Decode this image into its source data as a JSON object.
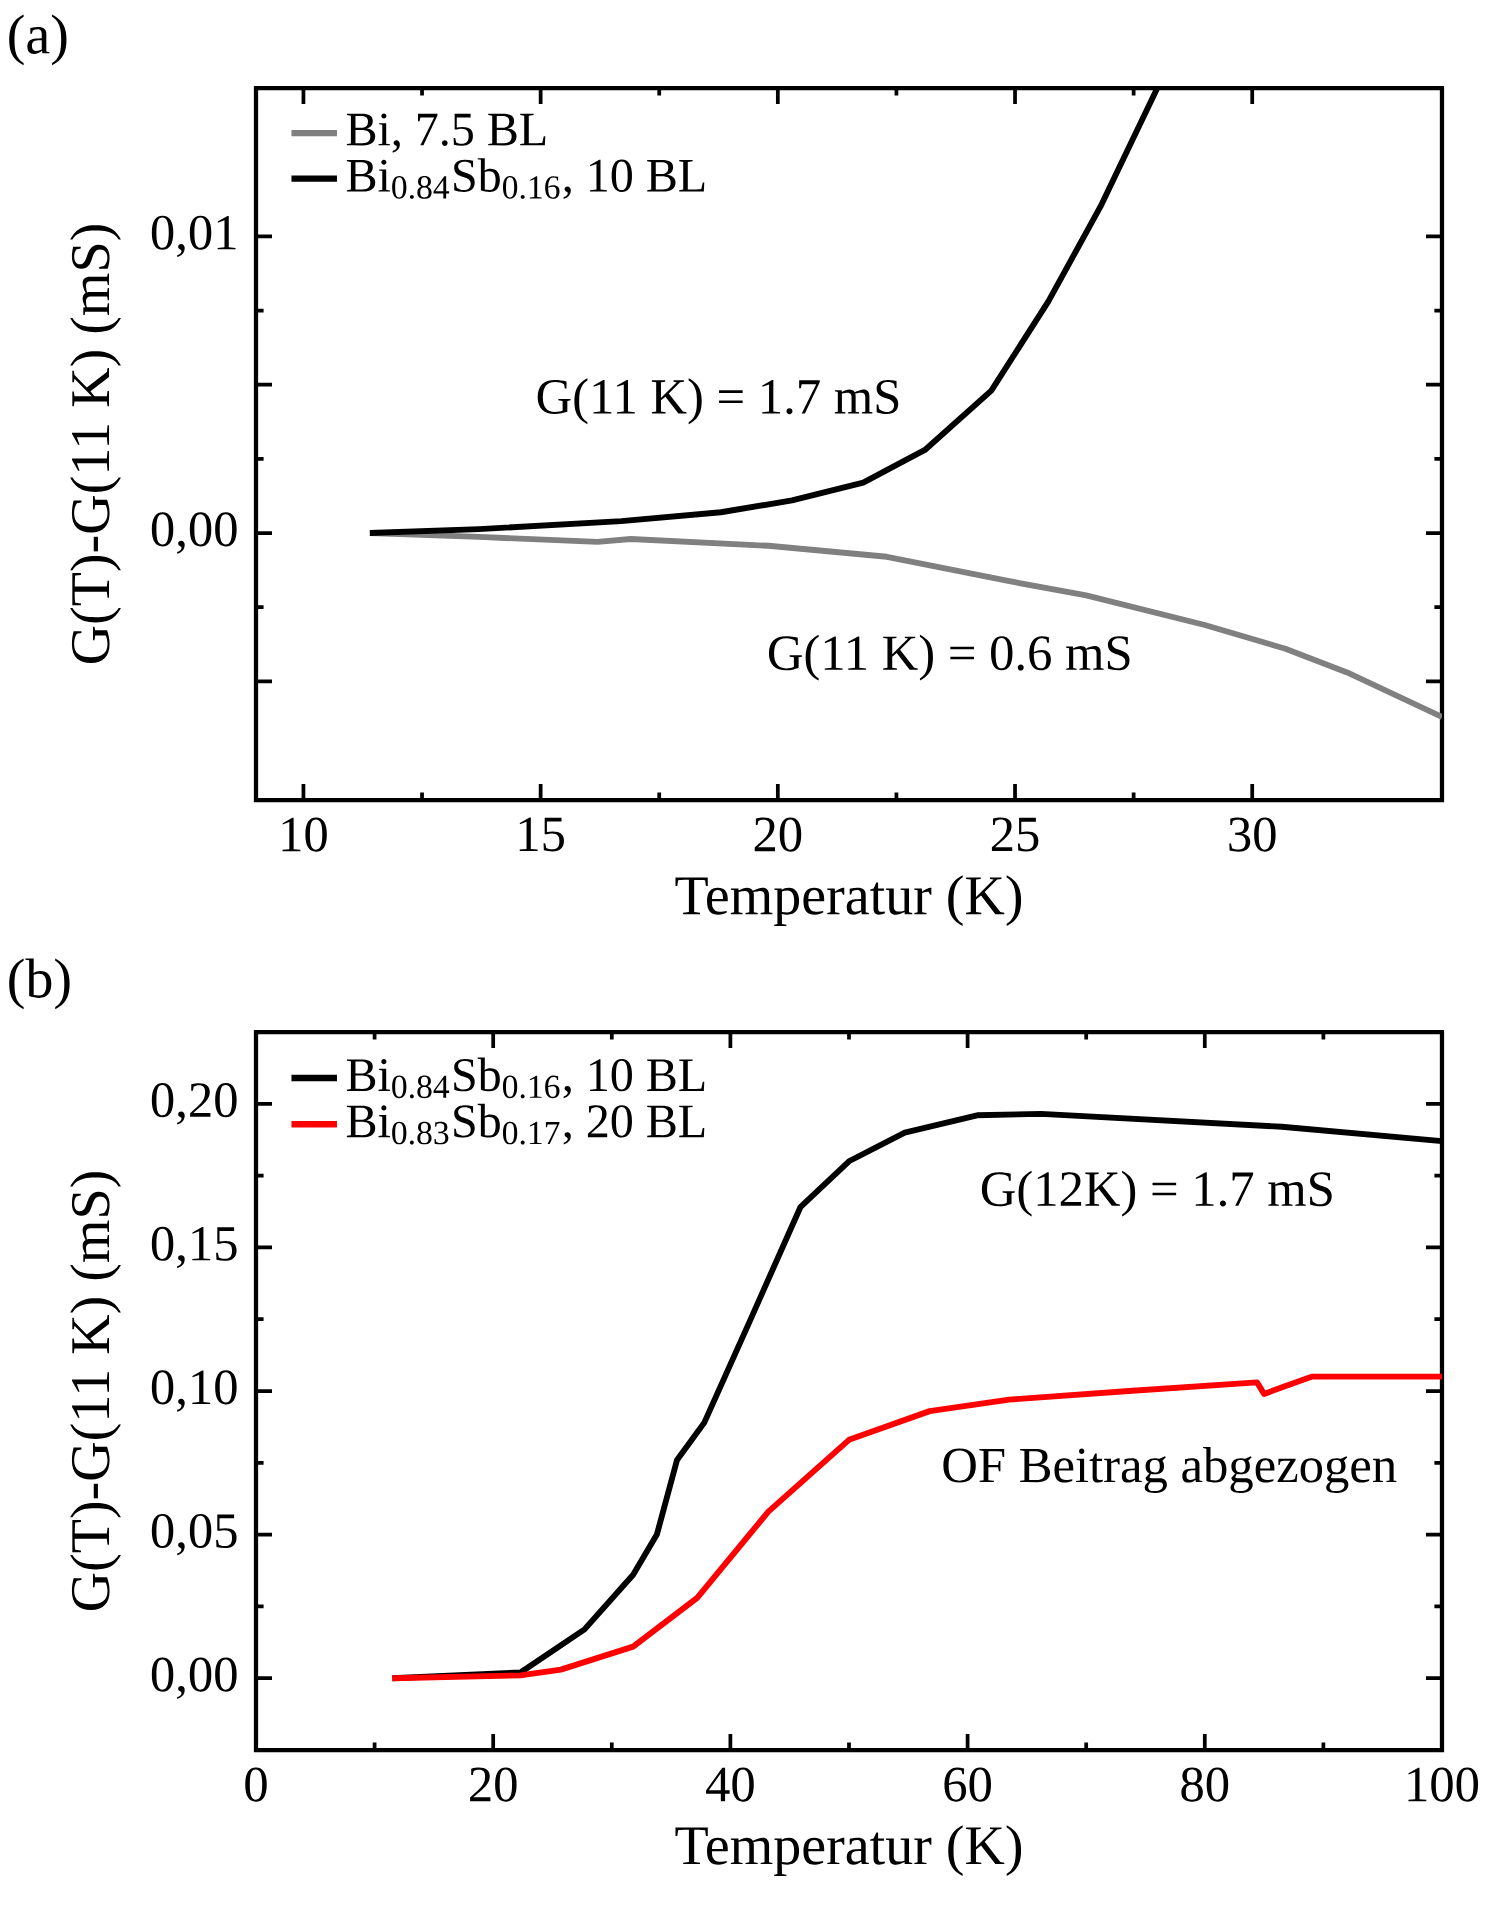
{
  "chart_data": [
    {
      "type": "line",
      "title": "(a)",
      "xlabel": "Temperatur (K)",
      "ylabel": "G(T)-G(11 K) (mS)",
      "xlim": [
        9,
        34
      ],
      "xticks": [
        10,
        15,
        20,
        25,
        30
      ],
      "ylim": [
        -0.009,
        0.015
      ],
      "yticks": [
        {
          "value": -0.005,
          "label": null
        },
        {
          "value": 0,
          "label": "0,00"
        },
        {
          "value": 0.005,
          "label": null
        },
        {
          "value": 0.01,
          "label": "0,01"
        }
      ],
      "legend": "top left",
      "grid": false,
      "annotations": [
        "G(11 K) = 1.7 mS",
        "G(11 K) = 0.6 mS"
      ],
      "series": [
        {
          "name": "Bi, 7.5 BL",
          "color": "#808080",
          "x": [
            11.4,
            13.7,
            16.2,
            16.9,
            19.8,
            22.3,
            24.8,
            26.5,
            29.0,
            30.7,
            32.0,
            34.0
          ],
          "values": [
            0.0,
            -0.00013,
            -0.0003,
            -0.0002,
            -0.00043,
            -0.0008,
            -0.0016,
            -0.0021,
            -0.0031,
            -0.0039,
            -0.0047,
            -0.0062
          ]
        },
        {
          "name": "Bi$_{0.84}$Sb$_{0.16}$, 10 BL",
          "color": "#000000",
          "x": [
            11.4,
            13.7,
            16.7,
            18.8,
            20.3,
            21.8,
            23.1,
            24.5,
            25.7,
            26.8,
            28.0
          ],
          "values": [
            0.0,
            0.00013,
            0.0004,
            0.0007,
            0.0011,
            0.0017,
            0.0028,
            0.0048,
            0.0078,
            0.011,
            0.015
          ]
        }
      ]
    },
    {
      "type": "line",
      "title": "(b)",
      "xlabel": "Temperatur (K)",
      "ylabel": "G(T)-G(11 K) (mS)",
      "xlim": [
        0,
        100
      ],
      "xticks": [
        0,
        20,
        40,
        60,
        80,
        100
      ],
      "ylim": [
        -0.025,
        0.225
      ],
      "yticks": [
        {
          "value": 0,
          "label": "0,00"
        },
        {
          "value": 0.05,
          "label": "0,05"
        },
        {
          "value": 0.1,
          "label": "0,10"
        },
        {
          "value": 0.15,
          "label": "0,15"
        },
        {
          "value": 0.2,
          "label": "0,20"
        }
      ],
      "legend": "top left",
      "grid": false,
      "annotations": [
        "G(12K) = 1.7 mS",
        "OF Beitrag abgezogen"
      ],
      "series": [
        {
          "name": "Bi$_{0.84}$Sb$_{0.16}$, 10 BL",
          "color": "#000000",
          "x": [
            11.5,
            22.3,
            27.7,
            31.8,
            33.8,
            35.5,
            37.8,
            41.6,
            45.9,
            50,
            54.7,
            60.8,
            66.2,
            86.5,
            100
          ],
          "values": [
            0.0,
            0.002,
            0.017,
            0.036,
            0.05,
            0.076,
            0.089,
            0.124,
            0.164,
            0.18,
            0.19,
            0.196,
            0.1965,
            0.192,
            0.187
          ]
        },
        {
          "name": "Bi$_{0.83}$Sb$_{0.17}$, 20 BL",
          "color": "#ff0000",
          "x": [
            11.5,
            22.3,
            25.7,
            31.8,
            37.2,
            43.2,
            50,
            56.8,
            63.5,
            73.6,
            84.4,
            85,
            89,
            100
          ],
          "values": [
            0.0,
            0.001,
            0.003,
            0.011,
            0.028,
            0.058,
            0.083,
            0.093,
            0.097,
            0.1,
            0.103,
            0.099,
            0.105,
            0.105
          ]
        }
      ]
    }
  ]
}
